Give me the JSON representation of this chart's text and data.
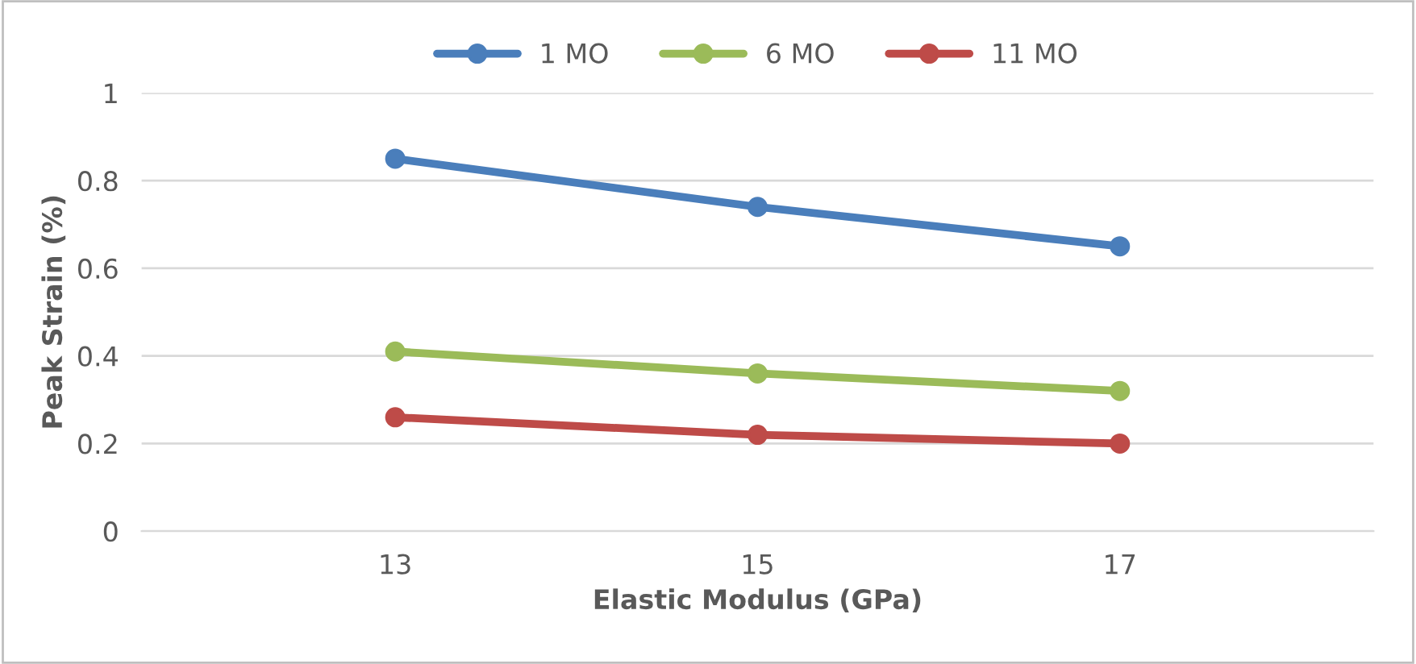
{
  "chart_data": {
    "type": "line",
    "xlabel": "Elastic Modulus (GPa)",
    "ylabel": "Peak Strain (%)",
    "categories": [
      "13",
      "15",
      "17"
    ],
    "series": [
      {
        "name": "1 MO",
        "color": "#4a7ebb",
        "values": [
          0.85,
          0.74,
          0.65
        ]
      },
      {
        "name": "6 MO",
        "color": "#9bbb59",
        "values": [
          0.41,
          0.36,
          0.32
        ]
      },
      {
        "name": "11 MO",
        "color": "#be4b48",
        "values": [
          0.26,
          0.22,
          0.2
        ]
      }
    ],
    "ylim": [
      0,
      1
    ],
    "yticks": [
      0,
      0.2,
      0.4,
      0.6,
      0.8,
      1
    ],
    "grid": "y",
    "legend": "top",
    "marker": "circle",
    "line_style": "solid"
  }
}
